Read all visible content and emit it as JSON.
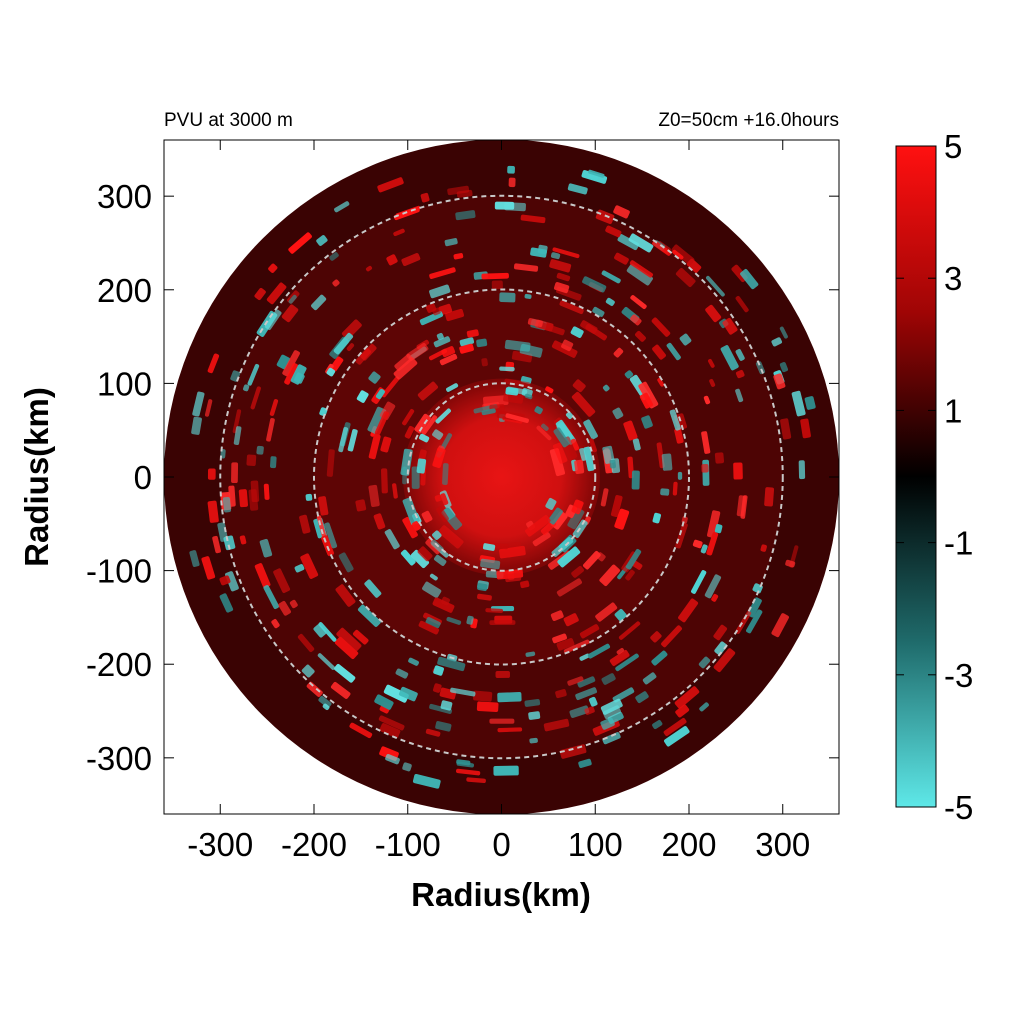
{
  "chart_data": {
    "type": "heatmap",
    "title_left": "PVU at  3000 m",
    "title_right": "Z0=50cm  +16.0hours",
    "xlabel": "Radius(km)",
    "ylabel": "Radius(km)",
    "xlim": [
      -360,
      360
    ],
    "ylim": [
      -360,
      360
    ],
    "xticks": [
      -300,
      -200,
      -100,
      0,
      100,
      200,
      300
    ],
    "yticks": [
      -300,
      -200,
      -100,
      0,
      100,
      200,
      300
    ],
    "domain_radius_km": 360,
    "reference_circles_km": [
      100,
      200,
      300
    ],
    "colorbar": {
      "range": [
        -5,
        5
      ],
      "ticks": [
        5,
        3,
        1,
        -1,
        -3,
        -5
      ],
      "colors": {
        "max": "#ff1010",
        "mid": "#000000",
        "min": "#5ee8e8"
      }
    },
    "field_description_values": {
      "core_radius_km": 100,
      "core_value": 4.5,
      "background_value": 1.2,
      "cyan_band_inner_km": 60,
      "cyan_band_outer_km": 300
    }
  }
}
